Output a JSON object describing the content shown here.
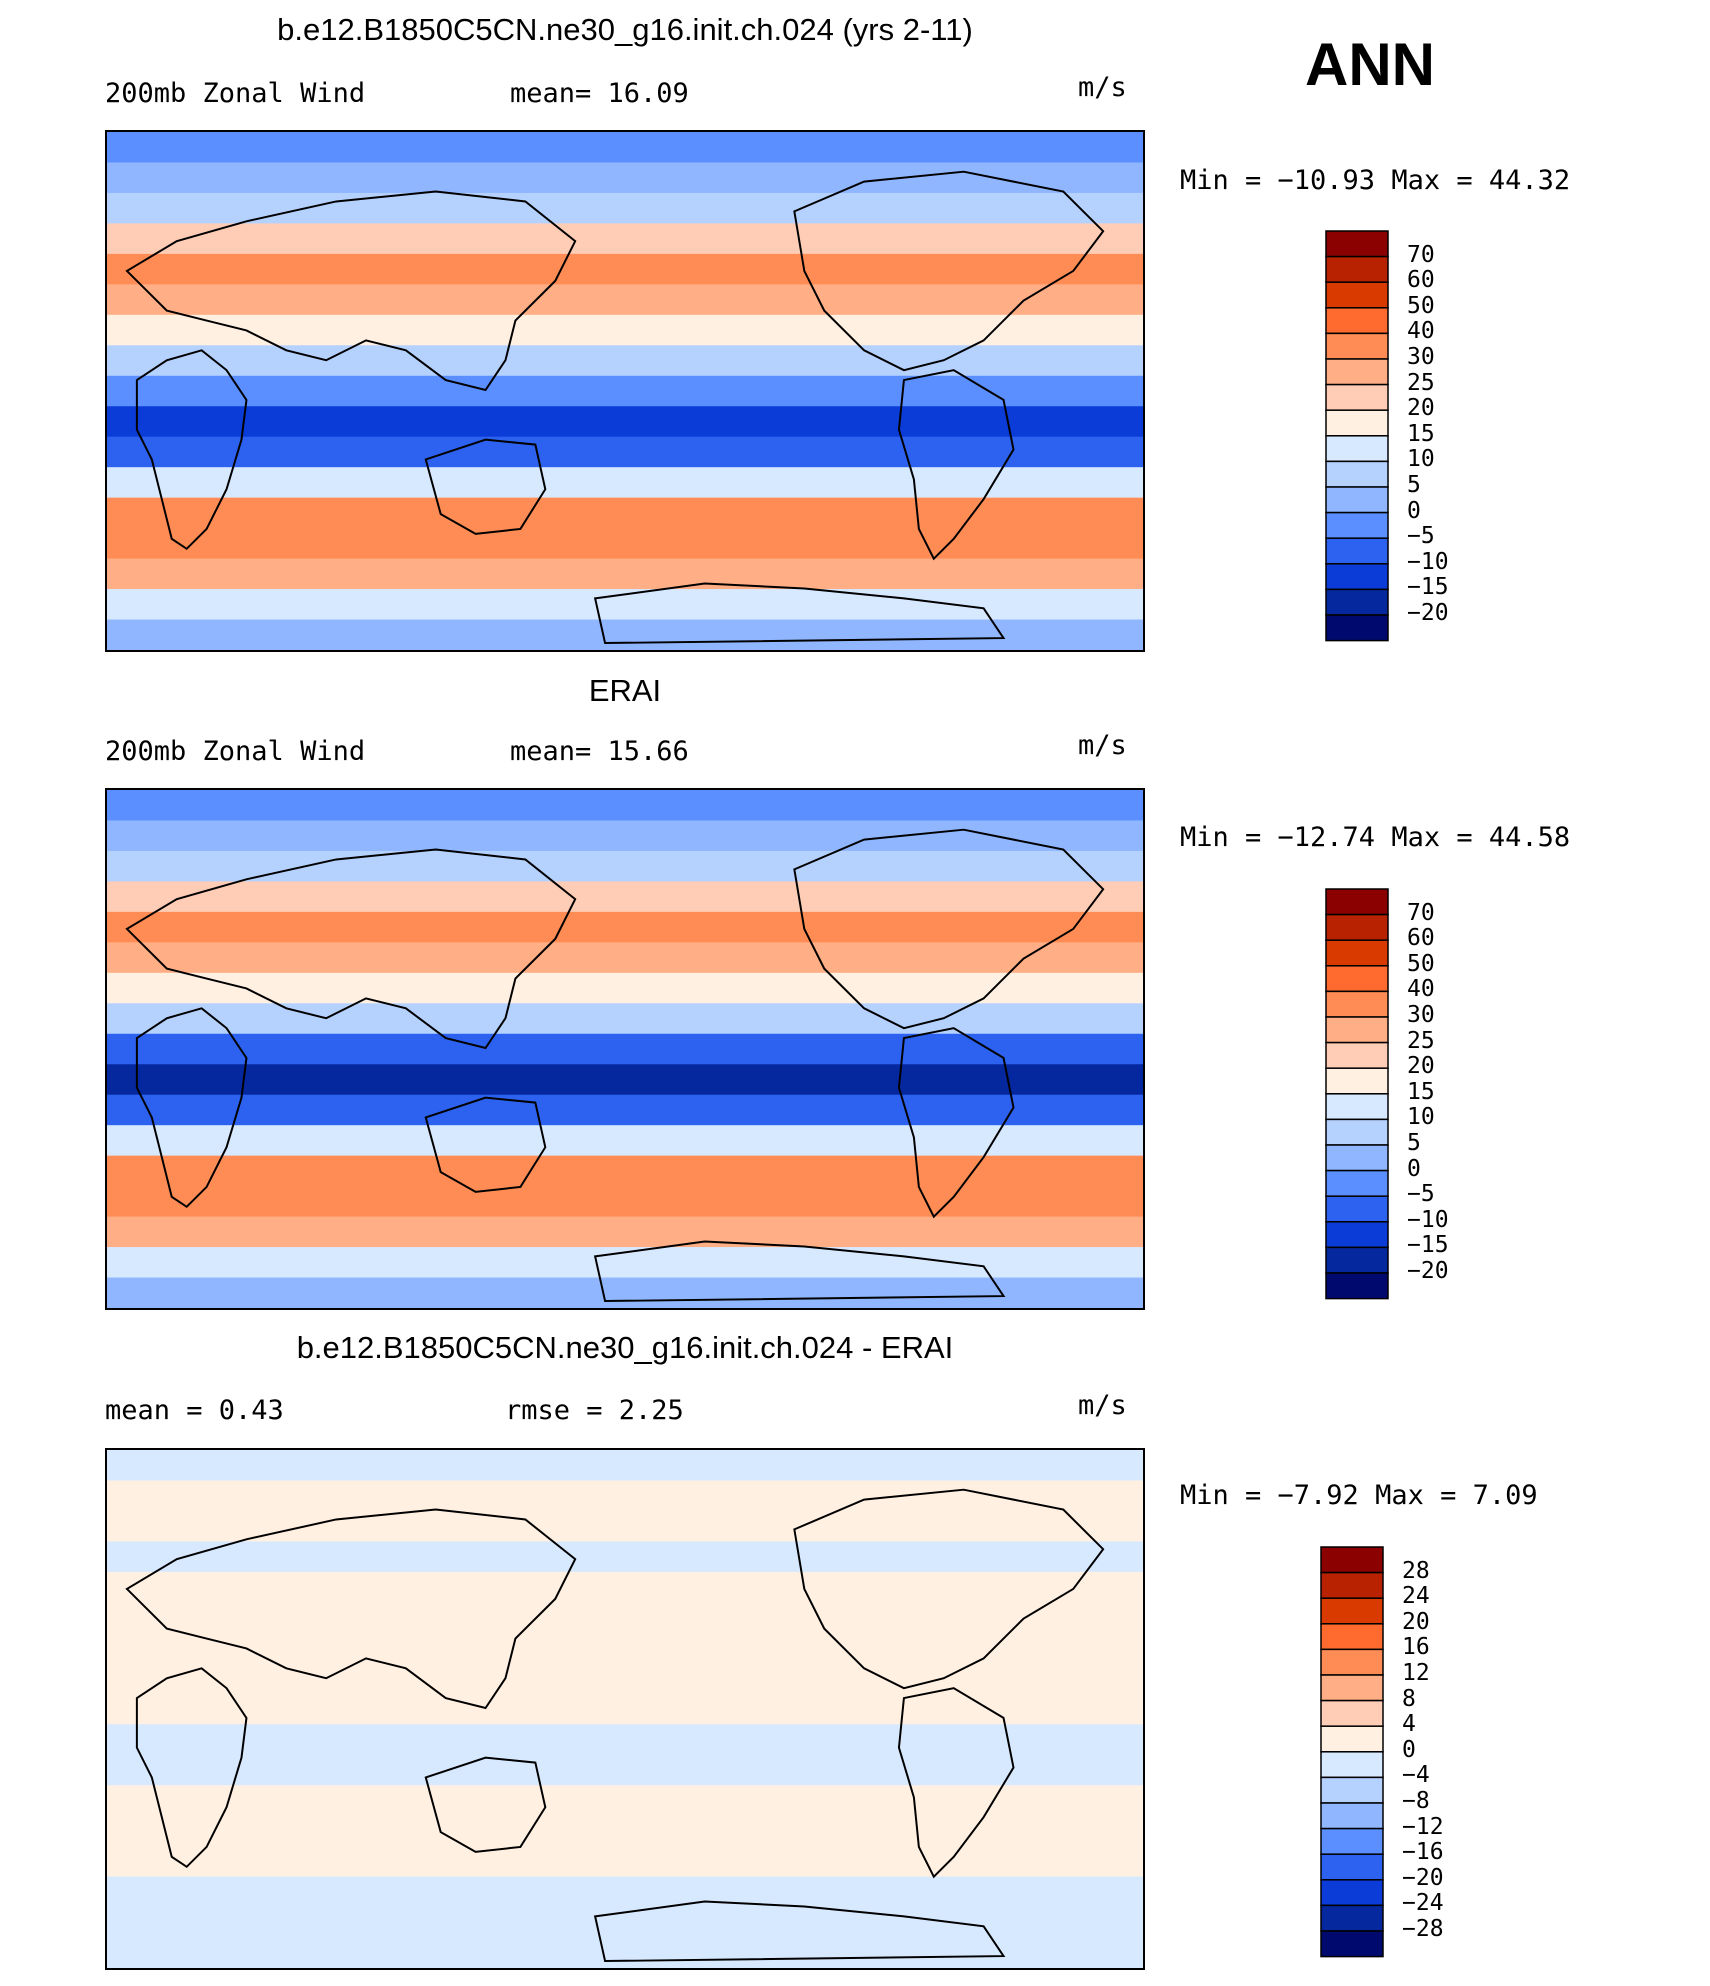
{
  "season": "ANN",
  "chart_data": [
    {
      "type": "heatmap",
      "title": "b.e12.B1850C5CN.ne30_g16.init.ch.024 (yrs 2-11)",
      "left_label": "200mb Zonal Wind",
      "center_label": "mean=   16.09",
      "units": "m/s",
      "minmax": "Min  =  −10.93  Max  =    44.32",
      "colorbar_levels": [
        "70",
        "60",
        "50",
        "40",
        "30",
        "25",
        "20",
        "15",
        "10",
        "5",
        "0",
        "−5",
        "−10",
        "−15",
        "−20"
      ],
      "colorbar_colors": [
        "#8b0000",
        "#b82200",
        "#d83a00",
        "#ff6a2e",
        "#ff8c55",
        "#ffae85",
        "#ffcdb5",
        "#fff0e2",
        "#d7e9ff",
        "#b5d2ff",
        "#8fb6ff",
        "#5b8fff",
        "#2d62f0",
        "#0c3cd8",
        "#06289e",
        "#000a6e"
      ],
      "latitude_band_values": [
        -3,
        2,
        8,
        22,
        32,
        26,
        18,
        8,
        -5,
        -15,
        -6,
        12,
        30,
        36,
        26,
        13,
        3
      ]
    },
    {
      "type": "heatmap",
      "title": "ERAI",
      "left_label": "200mb Zonal Wind",
      "center_label": "mean=   15.66",
      "units": "m/s",
      "minmax": "Min  =  −12.74  Max  =    44.58",
      "colorbar_levels": [
        "70",
        "60",
        "50",
        "40",
        "30",
        "25",
        "20",
        "15",
        "10",
        "5",
        "0",
        "−5",
        "−10",
        "−15",
        "−20"
      ],
      "colorbar_colors": [
        "#8b0000",
        "#b82200",
        "#d83a00",
        "#ff6a2e",
        "#ff8c55",
        "#ffae85",
        "#ffcdb5",
        "#fff0e2",
        "#d7e9ff",
        "#b5d2ff",
        "#8fb6ff",
        "#5b8fff",
        "#2d62f0",
        "#0c3cd8",
        "#06289e",
        "#000a6e"
      ],
      "latitude_band_values": [
        -2,
        1,
        8,
        21,
        31,
        27,
        19,
        6,
        -6,
        -16,
        -7,
        10,
        31,
        38,
        27,
        13,
        4
      ]
    },
    {
      "type": "heatmap",
      "title": "b.e12.B1850C5CN.ne30_g16.init.ch.024 - ERAI",
      "left_label": "mean =     0.43",
      "center_label": "rmse =     2.25",
      "units": "m/s",
      "minmax": "Min  =    −7.92  Max  =      7.09",
      "colorbar_levels": [
        "28",
        "24",
        "20",
        "16",
        "12",
        "8",
        "4",
        "0",
        "−4",
        "−8",
        "−12",
        "−16",
        "−20",
        "−24",
        "−28"
      ],
      "colorbar_colors": [
        "#8b0000",
        "#b82200",
        "#d83a00",
        "#ff6a2e",
        "#ff8c55",
        "#ffae85",
        "#ffcdb5",
        "#fff0e2",
        "#d7e9ff",
        "#b5d2ff",
        "#8fb6ff",
        "#5b8fff",
        "#2d62f0",
        "#0c3cd8",
        "#06289e",
        "#000a6e"
      ],
      "latitude_band_values": [
        -1,
        1,
        2,
        -2,
        1,
        3,
        2,
        1,
        2,
        -1,
        -3,
        2,
        3,
        1,
        -1,
        -2,
        -1
      ]
    }
  ]
}
